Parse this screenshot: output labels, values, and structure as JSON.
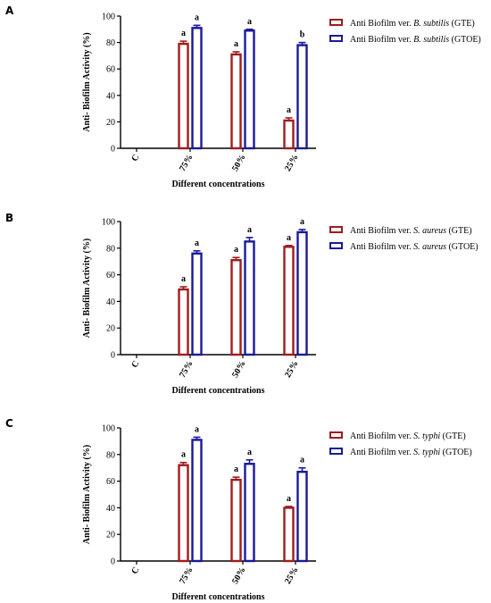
{
  "colors": {
    "gte": "#a01c1c",
    "gtoe": "#1a1a9a",
    "axis": "#000000"
  },
  "chart_data": [
    {
      "panel": "A",
      "type": "bar",
      "categories": [
        "C",
        "75%",
        "50%",
        "25%"
      ],
      "ylim": [
        0,
        100
      ],
      "yticks": [
        0,
        20,
        40,
        60,
        80,
        100
      ],
      "ylabel": "Anti- Biofilm Activity (%)",
      "xlabel": "Different concentrations",
      "legend_position": "right",
      "series": [
        {
          "key": "gte",
          "name": "Anti Biofilm ver. B. subtilis (GTE)",
          "name_prefix": "Anti Biofilm ver. ",
          "name_italic": "B. subtilis",
          "name_suffix": " (GTE)",
          "values": [
            null,
            79,
            71,
            21
          ],
          "errors": [
            null,
            2,
            2,
            2
          ],
          "labels": [
            "",
            "a",
            "a",
            "a"
          ]
        },
        {
          "key": "gtoe",
          "name": "Anti Biofilm ver. B. subtilis (GTOE)",
          "name_prefix": "Anti Biofilm ver. ",
          "name_italic": "B. subtilis",
          "name_suffix": " (GTOE)",
          "values": [
            null,
            91,
            89,
            78
          ],
          "errors": [
            null,
            2,
            1,
            2
          ],
          "labels": [
            "",
            "a",
            "a",
            "b"
          ]
        }
      ]
    },
    {
      "panel": "B",
      "type": "bar",
      "categories": [
        "C",
        "75%",
        "50%",
        "25%"
      ],
      "ylim": [
        0,
        100
      ],
      "yticks": [
        0,
        20,
        40,
        60,
        80,
        100
      ],
      "ylabel": "Anti- Biofilm Activity (%)",
      "xlabel": "Different concentrations",
      "legend_position": "right",
      "series": [
        {
          "key": "gte",
          "name": "Anti Biofilm ver. S. aureus (GTE)",
          "name_prefix": "Anti Biofilm ver. ",
          "name_italic": "S. aureus",
          "name_suffix": " (GTE)",
          "values": [
            null,
            49,
            71,
            81
          ],
          "errors": [
            null,
            2,
            2,
            1
          ],
          "labels": [
            "",
            "a",
            "a",
            "a"
          ]
        },
        {
          "key": "gtoe",
          "name": "Anti Biofilm ver. S. aureus (GTOE)",
          "name_prefix": "Anti Biofilm ver. ",
          "name_italic": "S. aureus",
          "name_suffix": " (GTOE)",
          "values": [
            null,
            76,
            85,
            92
          ],
          "errors": [
            null,
            2,
            3,
            2
          ],
          "labels": [
            "",
            "a",
            "a",
            "a"
          ]
        }
      ]
    },
    {
      "panel": "C",
      "type": "bar",
      "categories": [
        "C",
        "75%",
        "50%",
        "25%"
      ],
      "ylim": [
        0,
        100
      ],
      "yticks": [
        0,
        20,
        40,
        60,
        80,
        100
      ],
      "ylabel": "Anti- Biofilm Activity (%)",
      "xlabel": "Different concentrations",
      "legend_position": "right",
      "series": [
        {
          "key": "gte",
          "name": "Anti Biofilm ver. S. typhi (GTE)",
          "name_prefix": "Anti Biofilm ver. ",
          "name_italic": "S. typhi",
          "name_suffix": " (GTE)",
          "values": [
            null,
            72,
            61,
            40
          ],
          "errors": [
            null,
            2,
            2,
            1
          ],
          "labels": [
            "",
            "a",
            "a",
            "a"
          ]
        },
        {
          "key": "gtoe",
          "name": "Anti Biofilm ver. S. typhi (GTOE)",
          "name_prefix": "Anti Biofilm ver. ",
          "name_italic": "S. typhi",
          "name_suffix": " (GTOE)",
          "values": [
            null,
            91,
            73,
            67
          ],
          "errors": [
            null,
            2,
            3,
            3
          ],
          "labels": [
            "",
            "a",
            "a",
            "a"
          ]
        }
      ]
    }
  ]
}
